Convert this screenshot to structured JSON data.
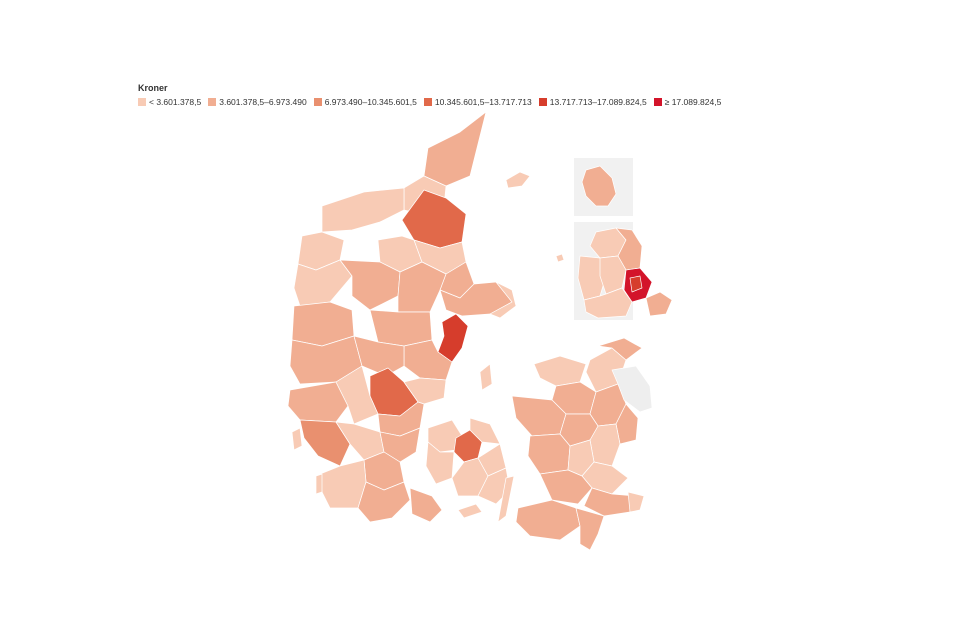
{
  "legend": {
    "title": "Kroner",
    "items": [
      {
        "label": "< 3.601.378,5",
        "color": "#f8cbb5"
      },
      {
        "label": "3.601.378,5–6.973.490",
        "color": "#f1ae92"
      },
      {
        "label": "6.973.490–10.345.601,5",
        "color": "#e9906f"
      },
      {
        "label": "10.345.601,5–13.717.713",
        "color": "#e1694a"
      },
      {
        "label": "13.717.713–17.089.824,5",
        "color": "#d63d2c"
      },
      {
        "label": "≥ 17.089.824,5",
        "color": "#d3142a"
      }
    ]
  },
  "colors": {
    "no_data": "#eeeeee",
    "inset_background": "#f1f1f1",
    "border": "#ffffff"
  }
}
